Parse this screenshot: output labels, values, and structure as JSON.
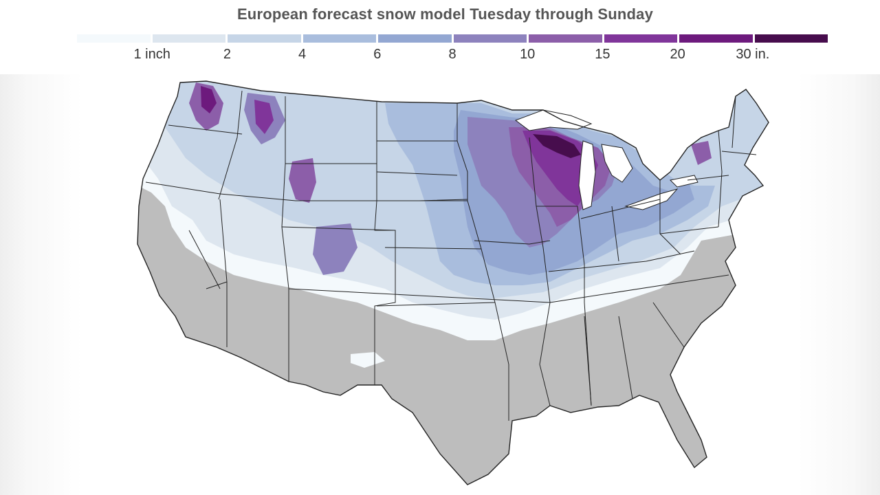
{
  "title": "European forecast snow model Tuesday through Sunday",
  "legend": {
    "colors": [
      "#f4f9fc",
      "#dde6ef",
      "#c6d5e7",
      "#a9bddd",
      "#93a7d2",
      "#8d82bd",
      "#8c5ea9",
      "#80359a",
      "#6d1a7d",
      "#470d4d"
    ],
    "labels": [
      "1 inch",
      "2",
      "4",
      "6",
      "8",
      "10",
      "15",
      "20",
      "30 in."
    ]
  },
  "map": {
    "no_snow_color": "#bdbdbd",
    "border_color": "#222222"
  }
}
